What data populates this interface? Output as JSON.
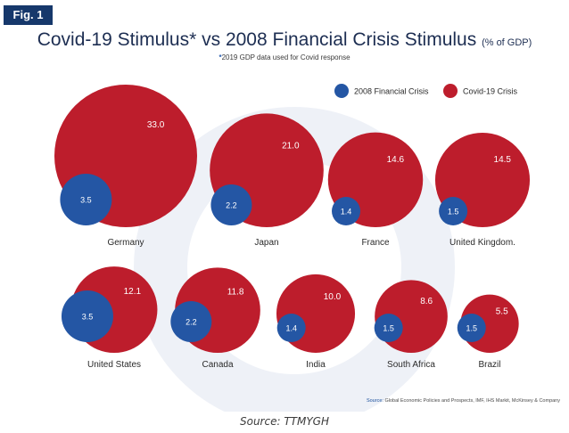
{
  "figure_label": "Fig. 1",
  "title_main": "Covid-19 Stimulus* vs 2008 Financial Crisis Stimulus",
  "title_unit": "(% of GDP)",
  "subtitle_star": "*",
  "subtitle_text": "2019 GDP data used for Covid response",
  "source_label": "Source:",
  "source_text": "Global Economic Policies and Prospects, IMF, IHS Markit, McKinsey & Company",
  "caption": "Source: TTMYGH",
  "colors": {
    "crisis_2008": "#2456a4",
    "covid_19": "#bd1d2c",
    "background_shape": "#eef1f7",
    "label_text": "#2a2a2a"
  },
  "chart_data": {
    "type": "bubble",
    "title": "Covid-19 Stimulus* vs 2008 Financial Crisis Stimulus",
    "unit": "% of GDP",
    "legend_position": "top-right",
    "series": [
      {
        "name": "2008 Financial Crisis",
        "color": "#2456a4"
      },
      {
        "name": "Covid-19 Crisis",
        "color": "#bd1d2c"
      }
    ],
    "categories": [
      "Germany",
      "Japan",
      "France",
      "United Kingdom.",
      "United States",
      "Canada",
      "India",
      "South Africa",
      "Brazil"
    ],
    "values_2008": [
      3.5,
      2.2,
      1.4,
      1.5,
      3.5,
      2.2,
      1.4,
      1.5,
      1.5
    ],
    "values_2008_labels": [
      "3.5",
      "2.2",
      "1.4",
      "1.5",
      "3.5",
      "2.2",
      "1.4",
      "1.5",
      "1.5"
    ],
    "values_covid": [
      33.0,
      21.0,
      14.6,
      14.5,
      12.1,
      11.8,
      10.0,
      8.6,
      5.5
    ],
    "values_covid_labels": [
      "33.0",
      "21.0",
      "14.6",
      "14.5",
      "12.1",
      "11.8",
      "10.0",
      "8.6",
      "5.5"
    ]
  }
}
